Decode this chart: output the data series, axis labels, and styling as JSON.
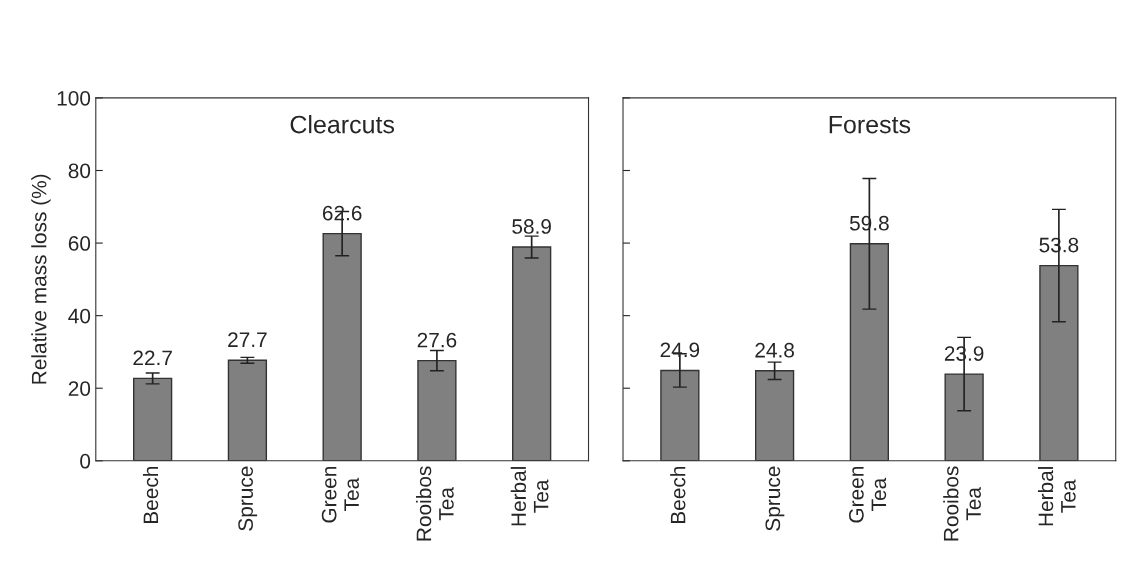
{
  "chart_data": [
    {
      "type": "bar",
      "title": "Clearcuts",
      "ylabel": "Relative mass loss (%)",
      "categories": [
        "Beech",
        "Spruce",
        "Green\nTea",
        "Rooibos\nTea",
        "Herbal\nTea"
      ],
      "values": [
        22.7,
        27.7,
        62.6,
        27.6,
        58.9
      ],
      "errors": [
        1.5,
        0.8,
        6.1,
        2.8,
        3.0
      ],
      "color": "#808080",
      "data_labels": true,
      "ylim": [
        0,
        100
      ],
      "yticks": [
        0,
        20,
        40,
        60,
        80,
        100
      ],
      "grid": false,
      "legend": false
    },
    {
      "type": "bar",
      "title": "Forests",
      "categories": [
        "Beech",
        "Spruce",
        "Green\nTea",
        "Rooibos\nTea",
        "Herbal\nTea"
      ],
      "values": [
        24.9,
        24.8,
        59.8,
        23.9,
        53.8
      ],
      "errors": [
        4.6,
        2.4,
        18.0,
        10.1,
        15.5
      ],
      "color": "#808080",
      "data_labels": true,
      "ylim": [
        0,
        100
      ],
      "yticks": [
        {
          "value": 0,
          "label": null
        },
        {
          "value": 20,
          "label": null
        },
        {
          "value": 40,
          "label": null
        },
        {
          "value": 60,
          "label": null
        },
        {
          "value": 80,
          "label": null
        },
        {
          "value": 100,
          "label": null
        }
      ],
      "tick_labels": "x",
      "grid": false,
      "legend": false
    }
  ]
}
